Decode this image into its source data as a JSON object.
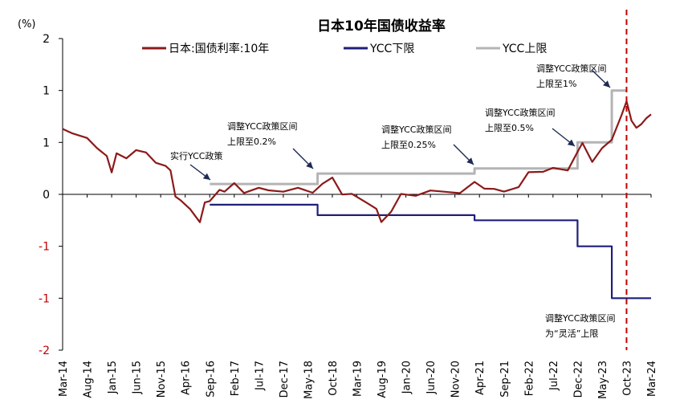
{
  "chart_data": {
    "type": "line",
    "title": "日本10年国债收益率",
    "ylabel": "(%)",
    "yticks": [
      "2",
      "1",
      "1",
      "0",
      "-1",
      "-1",
      "-2"
    ],
    "xticks": [
      "Mar-14",
      "Aug-14",
      "Jan-15",
      "Jun-15",
      "Nov-15",
      "Apr-16",
      "Sep-16",
      "Feb-17",
      "Jul-17",
      "Dec-17",
      "May-18",
      "Oct-18",
      "Mar-19",
      "Aug-19",
      "Jan-20",
      "Jun-20",
      "Nov-20",
      "Apr-21",
      "Sep-21",
      "Feb-22",
      "Jul-22",
      "Dec-22",
      "May-23",
      "Oct-23",
      "Mar-24"
    ],
    "ylim": [
      -1.5,
      1.5
    ],
    "legend_position": "top",
    "series": [
      {
        "name": "日本:国债利率:10年",
        "color": "#8b1a1a",
        "points": [
          [
            "2014-03",
            0.63
          ],
          [
            "2014-05",
            0.6
          ],
          [
            "2014-08",
            0.52
          ],
          [
            "2014-10",
            0.47
          ],
          [
            "2014-12",
            0.35
          ],
          [
            "2015-01",
            0.22
          ],
          [
            "2015-02",
            0.4
          ],
          [
            "2015-04",
            0.33
          ],
          [
            "2015-06",
            0.45
          ],
          [
            "2015-08",
            0.38
          ],
          [
            "2015-10",
            0.32
          ],
          [
            "2015-12",
            0.27
          ],
          [
            "2016-01",
            0.22
          ],
          [
            "2016-02",
            0.0
          ],
          [
            "2016-03",
            -0.08
          ],
          [
            "2016-05",
            -0.12
          ],
          [
            "2016-07",
            -0.28
          ],
          [
            "2016-08",
            -0.08
          ],
          [
            "2016-09",
            -0.05
          ],
          [
            "2016-11",
            0.02
          ],
          [
            "2016-12",
            0.05
          ],
          [
            "2017-02",
            0.09
          ],
          [
            "2017-04",
            0.02
          ],
          [
            "2017-07",
            0.07
          ],
          [
            "2017-09",
            0.02
          ],
          [
            "2017-12",
            0.05
          ],
          [
            "2018-03",
            0.04
          ],
          [
            "2018-06",
            0.03
          ],
          [
            "2018-08",
            0.1
          ],
          [
            "2018-10",
            0.15
          ],
          [
            "2018-12",
            0.02
          ],
          [
            "2019-02",
            -0.02
          ],
          [
            "2019-05",
            -0.06
          ],
          [
            "2019-07",
            -0.15
          ],
          [
            "2019-08",
            -0.27
          ],
          [
            "2019-10",
            -0.15
          ],
          [
            "2019-12",
            -0.02
          ],
          [
            "2020-03",
            0.01
          ],
          [
            "2020-06",
            0.02
          ],
          [
            "2020-09",
            0.03
          ],
          [
            "2020-12",
            0.02
          ],
          [
            "2021-03",
            0.1
          ],
          [
            "2021-05",
            0.08
          ],
          [
            "2021-07",
            0.03
          ],
          [
            "2021-09",
            0.04
          ],
          [
            "2021-12",
            0.07
          ],
          [
            "2022-02",
            0.2
          ],
          [
            "2022-05",
            0.24
          ],
          [
            "2022-07",
            0.23
          ],
          [
            "2022-10",
            0.25
          ],
          [
            "2022-12",
            0.4
          ],
          [
            "2023-01",
            0.49
          ],
          [
            "2023-03",
            0.33
          ],
          [
            "2023-05",
            0.42
          ],
          [
            "2023-07",
            0.55
          ],
          [
            "2023-09",
            0.75
          ],
          [
            "2023-10",
            0.9
          ],
          [
            "2023-11",
            0.72
          ],
          [
            "2023-12",
            0.62
          ],
          [
            "2024-01",
            0.7
          ],
          [
            "2024-02",
            0.71
          ],
          [
            "2024-03",
            0.77
          ]
        ]
      },
      {
        "name": "YCC下限",
        "color": "#1f1f7a",
        "points": [
          [
            "2016-09",
            -0.1
          ],
          [
            "2018-07",
            -0.1
          ],
          [
            "2018-07",
            -0.2
          ],
          [
            "2021-03",
            -0.2
          ],
          [
            "2021-03",
            -0.25
          ],
          [
            "2022-12",
            -0.25
          ],
          [
            "2022-12",
            -0.5
          ],
          [
            "2023-07",
            -0.5
          ],
          [
            "2023-07",
            -1.0
          ],
          [
            "2024-03",
            -1.0
          ]
        ]
      },
      {
        "name": "YCC上限",
        "color": "#b4b4b4",
        "points": [
          [
            "2016-09",
            0.1
          ],
          [
            "2018-07",
            0.1
          ],
          [
            "2018-07",
            0.2
          ],
          [
            "2021-03",
            0.2
          ],
          [
            "2021-03",
            0.25
          ],
          [
            "2022-12",
            0.25
          ],
          [
            "2022-12",
            0.5
          ],
          [
            "2023-07",
            0.5
          ],
          [
            "2023-07",
            1.0
          ],
          [
            "2023-10",
            1.0
          ]
        ]
      }
    ],
    "vline": {
      "date": "2023-10",
      "color": "#c00000"
    },
    "annotations": [
      {
        "id": "a1",
        "lines": [
          "实行YCC政策"
        ]
      },
      {
        "id": "a2",
        "lines": [
          "调整YCC政策区间",
          "上限至0.2%"
        ]
      },
      {
        "id": "a3",
        "lines": [
          "调整YCC政策区间",
          "上限至0.25%"
        ]
      },
      {
        "id": "a4",
        "lines": [
          "调整YCC政策区间",
          "上限至0.5%"
        ]
      },
      {
        "id": "a5",
        "lines": [
          "调整YCC政策区间",
          "上限至1%"
        ]
      },
      {
        "id": "a6",
        "lines": [
          "调整YCC政策区间",
          "为“灵活”上限"
        ]
      }
    ]
  }
}
